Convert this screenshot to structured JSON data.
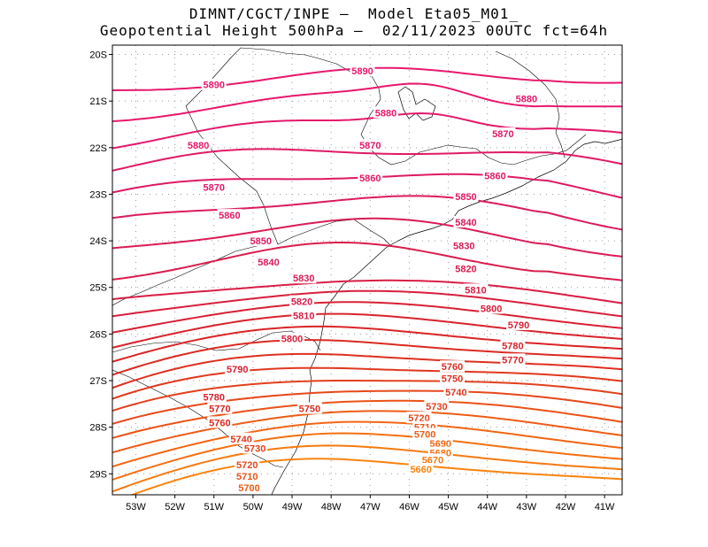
{
  "header": {
    "line1": "DIMNT/CGCT/INPE –  Model Eta05_M01_",
    "line2": "Geopotential Height 500hPa –  02/11/2023 00UTC fct=64h"
  },
  "axes": {
    "lat_labels": [
      "20S",
      "21S",
      "22S",
      "23S",
      "24S",
      "25S",
      "26S",
      "27S",
      "28S",
      "29S"
    ],
    "lon_labels": [
      "53W",
      "52W",
      "51W",
      "50W",
      "49W",
      "48W",
      "47W",
      "46W",
      "45W",
      "44W",
      "43W",
      "42W",
      "41W"
    ]
  },
  "map_data": {
    "lat_range": [
      -29.45,
      -19.8
    ],
    "lon_range": [
      -53.6,
      -40.55
    ],
    "contour_interval_m": 10,
    "contours": [
      {
        "value": 5890,
        "color": "#e8186c",
        "labels": [
          {
            "text": "5890",
            "lon": -51.0,
            "lat": -20.65
          },
          {
            "text": "5890",
            "lon": -47.2,
            "lat": -20.35
          }
        ]
      },
      {
        "value": 5880,
        "color": "#e8186c",
        "labels": [
          {
            "text": "5880",
            "lon": -51.4,
            "lat": -21.95
          },
          {
            "text": "5880",
            "lon": -46.6,
            "lat": -21.25
          },
          {
            "text": "5880",
            "lon": -43.0,
            "lat": -20.95
          }
        ]
      },
      {
        "value": 5870,
        "color": "#e3196a",
        "labels": [
          {
            "text": "5870",
            "lon": -51.0,
            "lat": -22.85
          },
          {
            "text": "5870",
            "lon": -47.0,
            "lat": -21.95
          },
          {
            "text": "5870",
            "lon": -43.6,
            "lat": -21.7
          }
        ]
      },
      {
        "value": 5860,
        "color": "#e01a66",
        "labels": [
          {
            "text": "5860",
            "lon": -50.6,
            "lat": -23.45
          },
          {
            "text": "5860",
            "lon": -47.0,
            "lat": -22.65
          },
          {
            "text": "5860",
            "lon": -43.8,
            "lat": -22.6
          }
        ]
      },
      {
        "value": 5850,
        "color": "#de1a62",
        "labels": [
          {
            "text": "5850",
            "lon": -49.8,
            "lat": -24.0
          },
          {
            "text": "5850",
            "lon": -44.55,
            "lat": -23.05
          }
        ]
      },
      {
        "value": 5840,
        "color": "#dc1b5c",
        "labels": [
          {
            "text": "5840",
            "lon": -49.6,
            "lat": -24.45
          },
          {
            "text": "5840",
            "lon": -44.55,
            "lat": -23.6
          }
        ]
      },
      {
        "value": 5830,
        "color": "#d91c55",
        "labels": [
          {
            "text": "5830",
            "lon": -48.7,
            "lat": -24.8
          },
          {
            "text": "5830",
            "lon": -44.6,
            "lat": -24.1
          }
        ]
      },
      {
        "value": 5820,
        "color": "#d91d4d",
        "labels": [
          {
            "text": "5820",
            "lon": -48.75,
            "lat": -25.3
          },
          {
            "text": "5820",
            "lon": -44.55,
            "lat": -24.6
          }
        ]
      },
      {
        "value": 5810,
        "color": "#d81e45",
        "labels": [
          {
            "text": "5810",
            "lon": -48.7,
            "lat": -25.6
          },
          {
            "text": "5810",
            "lon": -44.3,
            "lat": -25.05
          }
        ]
      },
      {
        "value": 5800,
        "color": "#d81f3c",
        "labels": [
          {
            "text": "5800",
            "lon": -49.0,
            "lat": -26.1
          },
          {
            "text": "5800",
            "lon": -43.9,
            "lat": -25.45
          }
        ]
      },
      {
        "value": 5790,
        "color": "#d82034",
        "labels": [
          {
            "text": "5790",
            "lon": -50.4,
            "lat": -26.75
          },
          {
            "text": "5790",
            "lon": -43.2,
            "lat": -25.8
          }
        ]
      },
      {
        "value": 5780,
        "color": "#d9222c",
        "labels": [
          {
            "text": "5780",
            "lon": -51.0,
            "lat": -27.35
          },
          {
            "text": "5780",
            "lon": -43.35,
            "lat": -26.25
          }
        ]
      },
      {
        "value": 5770,
        "color": "#da2426",
        "labels": [
          {
            "text": "5770",
            "lon": -50.85,
            "lat": -27.6
          },
          {
            "text": "5770",
            "lon": -43.35,
            "lat": -26.55
          }
        ]
      },
      {
        "value": 5760,
        "color": "#dc2a22",
        "labels": [
          {
            "text": "5760",
            "lon": -50.85,
            "lat": -27.9
          },
          {
            "text": "5760",
            "lon": -44.9,
            "lat": -26.7
          }
        ]
      },
      {
        "value": 5750,
        "color": "#de3020",
        "labels": [
          {
            "text": "5750",
            "lon": -48.55,
            "lat": -27.6
          },
          {
            "text": "5750",
            "lon": -44.9,
            "lat": -26.95
          }
        ]
      },
      {
        "value": 5740,
        "color": "#e0381e",
        "labels": [
          {
            "text": "5740",
            "lon": -50.3,
            "lat": -28.25
          },
          {
            "text": "5740",
            "lon": -44.8,
            "lat": -27.25
          }
        ]
      },
      {
        "value": 5730,
        "color": "#e2401c",
        "labels": [
          {
            "text": "5730",
            "lon": -49.95,
            "lat": -28.45
          },
          {
            "text": "5730",
            "lon": -45.3,
            "lat": -27.55
          }
        ]
      },
      {
        "value": 5720,
        "color": "#e6481a",
        "labels": [
          {
            "text": "5720",
            "lon": -50.15,
            "lat": -28.8
          },
          {
            "text": "5720",
            "lon": -45.75,
            "lat": -27.8
          }
        ]
      },
      {
        "value": 5710,
        "color": "#ea5218",
        "labels": [
          {
            "text": "5710",
            "lon": -50.15,
            "lat": -29.05
          },
          {
            "text": "5710",
            "lon": -45.6,
            "lat": -28.0
          }
        ]
      },
      {
        "value": 5700,
        "color": "#ee5c16",
        "labels": [
          {
            "text": "5700",
            "lon": -50.1,
            "lat": -29.3
          },
          {
            "text": "5700",
            "lon": -45.6,
            "lat": -28.15
          }
        ]
      },
      {
        "value": 5690,
        "color": "#f26614",
        "labels": [
          {
            "text": "5690",
            "lon": -45.2,
            "lat": -28.35
          }
        ]
      },
      {
        "value": 5680,
        "color": "#f47012",
        "labels": [
          {
            "text": "5680",
            "lon": -45.2,
            "lat": -28.55
          }
        ]
      },
      {
        "value": 5670,
        "color": "#f67a10",
        "labels": [
          {
            "text": "5670",
            "lon": -45.4,
            "lat": -28.7
          }
        ]
      },
      {
        "value": 5660,
        "color": "#f8840e",
        "labels": [
          {
            "text": "5660",
            "lon": -45.7,
            "lat": -28.9
          }
        ]
      }
    ]
  }
}
